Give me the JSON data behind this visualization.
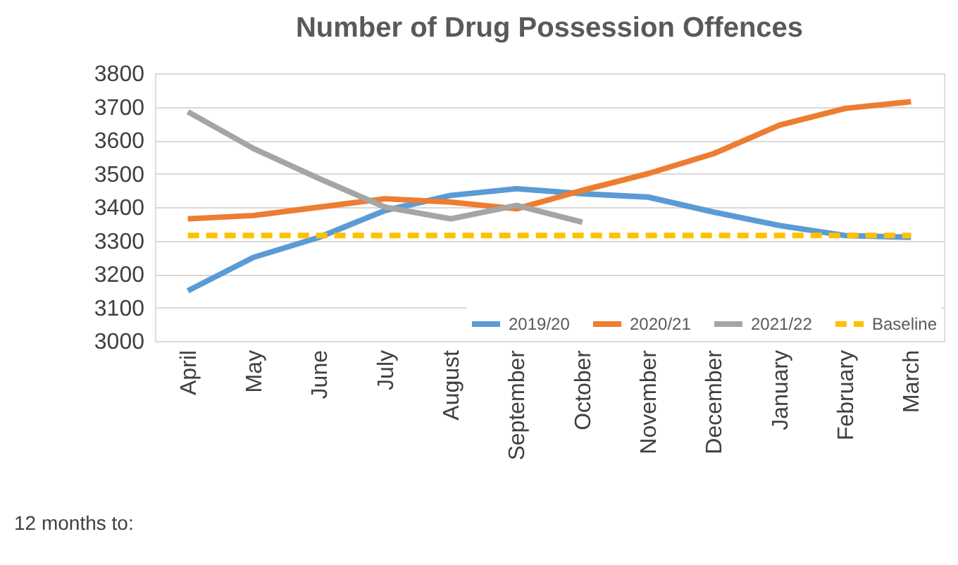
{
  "chart_data": {
    "type": "line",
    "title": "Number of Drug Possession Offences",
    "categories": [
      "April",
      "May",
      "June",
      "July",
      "August",
      "September",
      "October",
      "November",
      "December",
      "January",
      "February",
      "March"
    ],
    "series": [
      {
        "name": "2019/20",
        "color": "#5b9bd5",
        "values": [
          3150,
          3250,
          3310,
          3390,
          3435,
          3455,
          3440,
          3430,
          3385,
          3345,
          3315,
          3310
        ]
      },
      {
        "name": "2020/21",
        "color": "#ed7d31",
        "values": [
          3365,
          3375,
          3400,
          3425,
          3415,
          3395,
          3450,
          3500,
          3560,
          3645,
          3695,
          3715
        ]
      },
      {
        "name": "2021/22",
        "color": "#a5a5a5",
        "values": [
          3685,
          3575,
          3485,
          3400,
          3365,
          3405,
          3355,
          null,
          null,
          null,
          null,
          null
        ]
      },
      {
        "name": "Baseline",
        "color": "#ffc000",
        "line_style": "dashed",
        "values": [
          3315,
          3315,
          3315,
          3315,
          3315,
          3315,
          3315,
          3315,
          3315,
          3315,
          3315,
          3315
        ]
      }
    ],
    "ylim": [
      3000,
      3800
    ],
    "yticks": [
      3000,
      3100,
      3200,
      3300,
      3400,
      3500,
      3600,
      3700,
      3800
    ],
    "grid": "y",
    "legend": "bottom right",
    "marker": "none",
    "annotations": [
      "12 months to:"
    ]
  }
}
